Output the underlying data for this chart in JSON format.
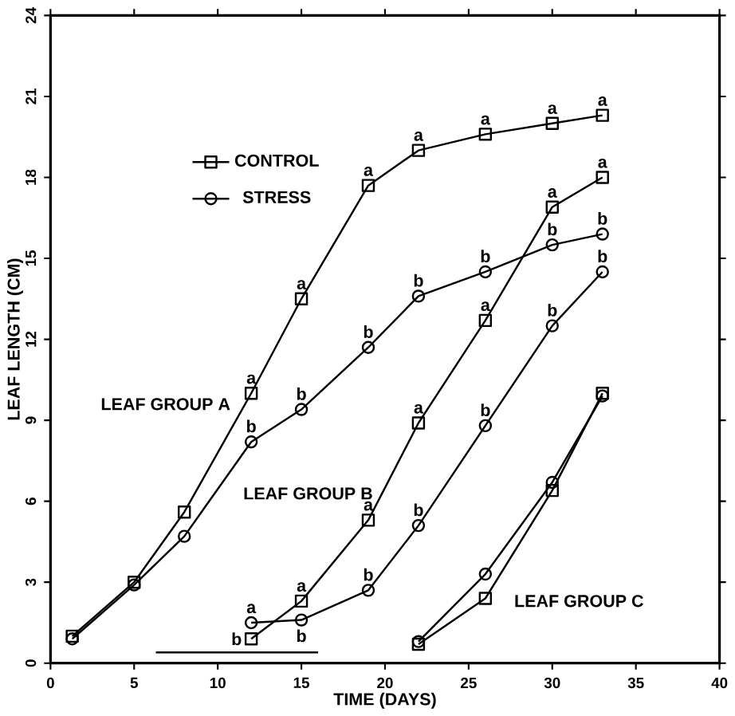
{
  "chart_data": {
    "type": "line",
    "xlabel": "TIME (DAYS)",
    "ylabel": "LEAF LENGTH (CM)",
    "xlim": [
      0,
      40
    ],
    "xticks": [
      0,
      5,
      10,
      15,
      20,
      25,
      30,
      35,
      40
    ],
    "ylim": [
      0,
      24
    ],
    "yticks": [
      0,
      3,
      6,
      9,
      12,
      15,
      18,
      21,
      24
    ],
    "legend": "top left",
    "grid": false,
    "line_style": "solid",
    "series": [
      {
        "name": "CONTROL",
        "color": "#000000",
        "marker": "square",
        "x": [
          1.3,
          5,
          8,
          12,
          15,
          19,
          22,
          26,
          30,
          33
        ],
        "values": [
          1.0,
          3.0,
          5.6,
          10.0,
          13.5,
          17.7,
          19.0,
          19.6,
          20.0,
          20.3
        ]
      },
      {
        "name": "STRESS",
        "color": "#000000",
        "marker": "circle",
        "x": [
          1.3,
          5,
          8,
          12,
          15,
          19,
          22,
          26,
          30,
          33
        ],
        "values": [
          0.9,
          2.9,
          4.7,
          8.2,
          9.4,
          11.7,
          13.6,
          14.5,
          15.5,
          15.9
        ]
      },
      {
        "color": "#000000",
        "marker": "square",
        "x": [
          12,
          15,
          19,
          22,
          26,
          30,
          33
        ],
        "values": [
          0.9,
          2.3,
          5.3,
          8.9,
          12.7,
          16.9,
          18.0
        ]
      },
      {
        "color": "#000000",
        "marker": "circle",
        "x": [
          12,
          15,
          19,
          22,
          26,
          30,
          33
        ],
        "values": [
          1.5,
          1.6,
          2.7,
          5.1,
          8.8,
          12.5,
          14.5
        ]
      },
      {
        "color": "#000000",
        "marker": "square",
        "x": [
          22,
          26,
          30,
          33
        ],
        "values": [
          0.7,
          2.4,
          6.4,
          10.0
        ]
      },
      {
        "color": "#000000",
        "marker": "circle",
        "x": [
          22,
          26,
          30,
          33
        ],
        "values": [
          0.8,
          3.3,
          6.7,
          9.9
        ]
      },
      {
        "color": "#000000",
        "marker": "none",
        "x": [
          6.3,
          16
        ],
        "values": [
          0.4,
          0.4
        ]
      }
    ],
    "annotations": [
      "LEAF GROUP A",
      "LEAF GROUP B",
      "LEAF GROUP C",
      {
        "text": "a",
        "x": 12,
        "y": 10.0
      },
      {
        "text": "a",
        "x": 15,
        "y": 13.5
      },
      {
        "text": "a",
        "x": 19,
        "y": 17.7
      },
      {
        "text": "a",
        "x": 22,
        "y": 19.0
      },
      {
        "text": "a",
        "x": 26,
        "y": 19.6
      },
      {
        "text": "a",
        "x": 30,
        "y": 20.0
      },
      {
        "text": "a",
        "x": 33,
        "y": 20.3
      },
      {
        "text": "b",
        "x": 12,
        "y": 8.2
      },
      {
        "text": "b",
        "x": 15,
        "y": 9.4
      },
      {
        "text": "b",
        "x": 19,
        "y": 11.7
      },
      {
        "text": "b",
        "x": 22,
        "y": 13.6
      },
      {
        "text": "b",
        "x": 26,
        "y": 14.5
      },
      {
        "text": "b",
        "x": 30,
        "y": 15.5
      },
      {
        "text": "b",
        "x": 33,
        "y": 15.9
      },
      {
        "text": "b",
        "x": 12,
        "y": 0.9
      },
      {
        "text": "a",
        "x": 15,
        "y": 2.3
      },
      {
        "text": "a",
        "x": 19,
        "y": 5.3
      },
      {
        "text": "a",
        "x": 22,
        "y": 8.9
      },
      {
        "text": "a",
        "x": 26,
        "y": 12.7
      },
      {
        "text": "a",
        "x": 30,
        "y": 16.9
      },
      {
        "text": "a",
        "x": 33,
        "y": 18.0
      },
      {
        "text": "a",
        "x": 12,
        "y": 1.5
      },
      {
        "text": "b",
        "x": 15,
        "y": 1.6
      },
      {
        "text": "b",
        "x": 19,
        "y": 2.7
      },
      {
        "text": "b",
        "x": 22,
        "y": 5.1
      },
      {
        "text": "b",
        "x": 26,
        "y": 8.8
      },
      {
        "text": "b",
        "x": 30,
        "y": 12.5
      },
      {
        "text": "b",
        "x": 33,
        "y": 14.5
      }
    ]
  }
}
